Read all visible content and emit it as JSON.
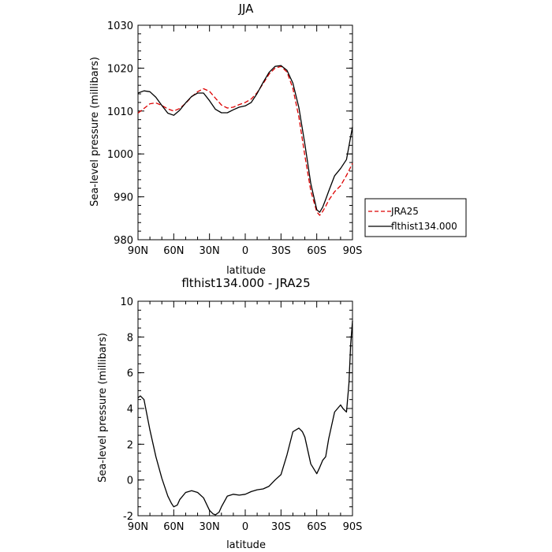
{
  "chart_data": [
    {
      "type": "line",
      "title": "JJA",
      "xlabel": "latitude",
      "ylabel": "Sea-level pressure (millibars)",
      "xlim": [
        90,
        -90
      ],
      "ylim": [
        980,
        1030
      ],
      "x_ticks": [
        {
          "value": 90,
          "label": "90N"
        },
        {
          "value": 60,
          "label": "60N"
        },
        {
          "value": 30,
          "label": "30N"
        },
        {
          "value": 0,
          "label": "0"
        },
        {
          "value": -30,
          "label": "30S"
        },
        {
          "value": -60,
          "label": "60S"
        },
        {
          "value": -90,
          "label": "90S"
        }
      ],
      "y_ticks": [
        980,
        990,
        1000,
        1010,
        1020,
        1030
      ],
      "legend_position": "right",
      "series": [
        {
          "name": "JRA25",
          "color": "#dd0000",
          "dash": "dashed",
          "x": [
            90,
            85,
            80,
            75,
            70,
            65,
            60,
            55,
            50,
            45,
            40,
            35,
            30,
            25,
            20,
            15,
            10,
            5,
            0,
            -5,
            -10,
            -15,
            -20,
            -25,
            -30,
            -35,
            -40,
            -45,
            -50,
            -55,
            -60,
            -62.5,
            -65,
            -67.5,
            -70,
            -75,
            -80,
            -85,
            -90
          ],
          "y": [
            1009.5,
            1010.6,
            1011.7,
            1011.9,
            1011.3,
            1010.5,
            1010.0,
            1010.6,
            1011.8,
            1013.3,
            1014.5,
            1015.2,
            1014.6,
            1013.0,
            1011.4,
            1010.7,
            1010.9,
            1011.5,
            1012.0,
            1012.8,
            1014.3,
            1016.4,
            1018.6,
            1020.0,
            1020.4,
            1019.1,
            1015.3,
            1008.6,
            999.6,
            991.4,
            986.5,
            985.7,
            986.6,
            987.8,
            989.2,
            991.2,
            992.6,
            995.0,
            997.8
          ]
        },
        {
          "name": "flthist134.000",
          "color": "#000000",
          "dash": "solid",
          "x": [
            90,
            85,
            80,
            75,
            70,
            65,
            60,
            55,
            50,
            45,
            40,
            35,
            30,
            25,
            20,
            15,
            10,
            5,
            0,
            -5,
            -10,
            -15,
            -20,
            -25,
            -30,
            -35,
            -40,
            -45,
            -50,
            -55,
            -60,
            -62.5,
            -65,
            -67.5,
            -70,
            -75,
            -80,
            -85,
            -90
          ],
          "y": [
            1014.2,
            1014.7,
            1014.5,
            1013.2,
            1011.3,
            1009.5,
            1009.0,
            1010.2,
            1011.9,
            1013.4,
            1014.2,
            1014.2,
            1012.4,
            1010.4,
            1009.6,
            1009.6,
            1010.3,
            1010.9,
            1011.2,
            1012.0,
            1014.1,
            1016.7,
            1019.0,
            1020.4,
            1020.6,
            1019.5,
            1016.5,
            1010.8,
            1002.3,
            993.1,
            987.0,
            986.4,
            987.6,
            989.4,
            991.3,
            994.9,
            996.6,
            998.7,
            1006.3
          ]
        }
      ]
    },
    {
      "type": "line",
      "title": "flthist134.000 - JRA25",
      "xlabel": "latitude",
      "ylabel": "Sea-level pressure (millibars)",
      "xlim": [
        90,
        -90
      ],
      "ylim": [
        -2,
        10
      ],
      "x_ticks": [
        {
          "value": 90,
          "label": "90N"
        },
        {
          "value": 60,
          "label": "60N"
        },
        {
          "value": 30,
          "label": "30N"
        },
        {
          "value": 0,
          "label": "0"
        },
        {
          "value": -30,
          "label": "30S"
        },
        {
          "value": -60,
          "label": "60S"
        },
        {
          "value": -90,
          "label": "90S"
        }
      ],
      "y_ticks": [
        -2,
        0,
        2,
        4,
        6,
        8,
        10
      ],
      "series": [
        {
          "color": "#000000",
          "dash": "solid",
          "x": [
            90,
            88,
            85,
            80,
            75,
            70,
            65,
            62,
            60,
            57,
            55,
            50,
            45,
            40,
            35,
            30,
            27,
            25,
            22,
            20,
            15,
            10,
            5,
            0,
            -5,
            -10,
            -15,
            -20,
            -25,
            -30,
            -35,
            -40,
            -45,
            -48,
            -50,
            -55,
            -60,
            -62.5,
            -65,
            -67.5,
            -70,
            -75,
            -80,
            -82,
            -85,
            -87,
            -88.5,
            -90
          ],
          "y": [
            4.6,
            4.7,
            4.5,
            2.8,
            1.3,
            0.1,
            -0.9,
            -1.3,
            -1.5,
            -1.4,
            -1.1,
            -0.7,
            -0.6,
            -0.7,
            -1.0,
            -1.7,
            -1.9,
            -1.95,
            -1.8,
            -1.5,
            -0.9,
            -0.8,
            -0.85,
            -0.8,
            -0.65,
            -0.55,
            -0.5,
            -0.35,
            0.0,
            0.3,
            1.4,
            2.7,
            2.9,
            2.7,
            2.4,
            0.9,
            0.35,
            0.7,
            1.1,
            1.3,
            2.3,
            3.8,
            4.2,
            4.0,
            3.8,
            5.4,
            7.6,
            8.9
          ]
        }
      ]
    }
  ]
}
